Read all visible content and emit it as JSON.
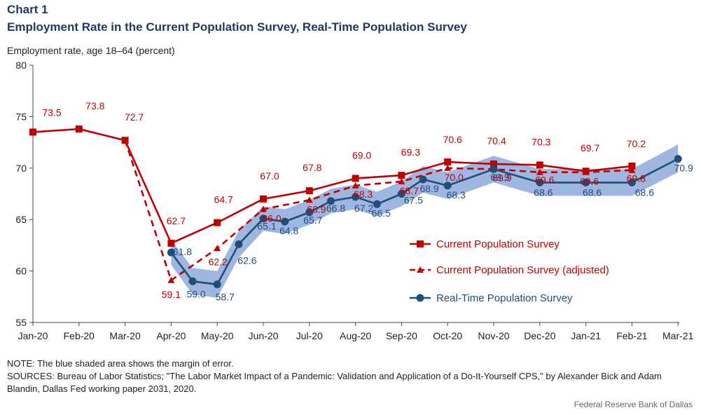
{
  "header": {
    "chart_label": "Chart 1",
    "title": "Employment Rate in the Current Population Survey, Real-Time Population Survey"
  },
  "footer": {
    "note": "NOTE: The blue shaded area shows the margin of error.",
    "sources": "SOURCES: Bureau of Labor Statistics; \"The Labor Market Impact of a Pandemic: Validation and Application of a Do-It-Yourself  CPS,\" by Alexander Bick and Adam Blandin, Dallas Fed working paper 2031, 2020.",
    "credit": "Federal Reserve Bank of Dallas"
  },
  "colors": {
    "cps": "#c00000",
    "rps": "#1f4e79",
    "band": "#8eaadb",
    "axis": "#444444"
  },
  "chart_data": {
    "type": "line",
    "title": "Employment Rate in the Current Population Survey, Real-Time Population Survey",
    "ylabel": "Employment rate, age 18–64 (percent)",
    "xlabel": "",
    "ylim": [
      55,
      80
    ],
    "yticks": [
      55,
      60,
      65,
      70,
      75,
      80
    ],
    "grid": false,
    "legend_position": "right",
    "x_ticks": [
      "Jan-20",
      "Feb-20",
      "Mar-20",
      "Apr-20",
      "May-20",
      "Jun-20",
      "Jul-20",
      "Aug-20",
      "Sep-20",
      "Oct-20",
      "Nov-20",
      "Dec-20",
      "Jan-21",
      "Feb-21",
      "Mar-21"
    ],
    "series": [
      {
        "name": "Current Population Survey",
        "style": "solid-square",
        "color": "#c00000",
        "points": [
          {
            "x": "2020-01",
            "y": 73.5,
            "label": "73.5"
          },
          {
            "x": "2020-02",
            "y": 73.8,
            "label": "73.8"
          },
          {
            "x": "2020-03",
            "y": 72.7,
            "label": "72.7"
          },
          {
            "x": "2020-04",
            "y": 62.7,
            "label": "62.7"
          },
          {
            "x": "2020-05",
            "y": 64.7,
            "label": "64.7"
          },
          {
            "x": "2020-06",
            "y": 67.0,
            "label": "67.0"
          },
          {
            "x": "2020-07",
            "y": 67.8,
            "label": "67.8"
          },
          {
            "x": "2020-08",
            "y": 69.0,
            "label": "69.0"
          },
          {
            "x": "2020-09",
            "y": 69.3,
            "label": "69.3"
          },
          {
            "x": "2020-10",
            "y": 70.6,
            "label": "70.6"
          },
          {
            "x": "2020-11",
            "y": 70.4,
            "label": "70.4"
          },
          {
            "x": "2020-12",
            "y": 70.3,
            "label": "70.3"
          },
          {
            "x": "2021-01",
            "y": 69.7,
            "label": "69.7"
          },
          {
            "x": "2021-02",
            "y": 70.2,
            "label": "70.2"
          }
        ]
      },
      {
        "name": "Current Population Survey (adjusted)",
        "style": "dashed-triangle",
        "color": "#c00000",
        "points": [
          {
            "x": "2020-03",
            "y": 72.7,
            "label": ""
          },
          {
            "x": "2020-04",
            "y": 59.1,
            "label": "59.1"
          },
          {
            "x": "2020-05",
            "y": 62.2,
            "label": "62.2"
          },
          {
            "x": "2020-06",
            "y": 66.0,
            "label": "66.0"
          },
          {
            "x": "2020-07",
            "y": 66.9,
            "label": "66.9"
          },
          {
            "x": "2020-08",
            "y": 68.3,
            "label": "68.3"
          },
          {
            "x": "2020-09",
            "y": 68.7,
            "label": "68.7"
          },
          {
            "x": "2020-10",
            "y": 70.0,
            "label": "70.0"
          },
          {
            "x": "2020-11",
            "y": 69.9,
            "label": "69.9"
          },
          {
            "x": "2020-12",
            "y": 69.6,
            "label": "69.6"
          },
          {
            "x": "2021-01",
            "y": 69.6,
            "label": "69.6"
          },
          {
            "x": "2021-02",
            "y": 69.8,
            "label": "69.8"
          }
        ]
      },
      {
        "name": "Real-Time Population Survey",
        "style": "solid-circle",
        "color": "#1f4e79",
        "points": [
          {
            "x": "2020-04",
            "y": 61.8,
            "label": "61.8"
          },
          {
            "x": "2020-04-15",
            "y": 59.0,
            "label": "59.0"
          },
          {
            "x": "2020-05",
            "y": 58.7,
            "label": "58.7"
          },
          {
            "x": "2020-05-15",
            "y": 62.6,
            "label": "62.6"
          },
          {
            "x": "2020-06",
            "y": 65.1,
            "label": "65.1"
          },
          {
            "x": "2020-06-15",
            "y": 64.8,
            "label": "64.8"
          },
          {
            "x": "2020-07",
            "y": 65.7,
            "label": "65.7"
          },
          {
            "x": "2020-07-15",
            "y": 66.8,
            "label": "66.8"
          },
          {
            "x": "2020-08",
            "y": 67.2,
            "label": "67.2"
          },
          {
            "x": "2020-08-15",
            "y": 66.5,
            "label": "66.5"
          },
          {
            "x": "2020-09",
            "y": 67.5,
            "label": "67.5"
          },
          {
            "x": "2020-09-15",
            "y": 68.9,
            "label": "68.9"
          },
          {
            "x": "2020-10",
            "y": 68.3,
            "label": "68.3"
          },
          {
            "x": "2020-11",
            "y": 69.9,
            "label": "69.9"
          },
          {
            "x": "2020-12",
            "y": 68.6,
            "label": "68.6"
          },
          {
            "x": "2021-01",
            "y": 68.6,
            "label": "68.6"
          },
          {
            "x": "2021-02",
            "y": 68.6,
            "label": "68.6"
          },
          {
            "x": "2021-03",
            "y": 70.9,
            "label": "70.9"
          }
        ]
      }
    ],
    "margin_of_error": {
      "name": "margin of error",
      "points": [
        {
          "x": "2020-04",
          "lo": 60.6,
          "hi": 63.0
        },
        {
          "x": "2020-04-15",
          "lo": 57.7,
          "hi": 60.3
        },
        {
          "x": "2020-05",
          "lo": 57.4,
          "hi": 60.0
        },
        {
          "x": "2020-05-15",
          "lo": 61.3,
          "hi": 63.9
        },
        {
          "x": "2020-06",
          "lo": 63.9,
          "hi": 66.3
        },
        {
          "x": "2020-06-15",
          "lo": 63.6,
          "hi": 66.0
        },
        {
          "x": "2020-07",
          "lo": 64.5,
          "hi": 66.9
        },
        {
          "x": "2020-07-15",
          "lo": 65.6,
          "hi": 68.0
        },
        {
          "x": "2020-08",
          "lo": 66.0,
          "hi": 68.4
        },
        {
          "x": "2020-08-15",
          "lo": 65.3,
          "hi": 67.7
        },
        {
          "x": "2020-09",
          "lo": 66.3,
          "hi": 68.7
        },
        {
          "x": "2020-09-15",
          "lo": 67.6,
          "hi": 70.2
        },
        {
          "x": "2020-10",
          "lo": 67.0,
          "hi": 69.6
        },
        {
          "x": "2020-11",
          "lo": 68.6,
          "hi": 71.2
        },
        {
          "x": "2020-12",
          "lo": 67.3,
          "hi": 69.9
        },
        {
          "x": "2021-01",
          "lo": 67.3,
          "hi": 69.9
        },
        {
          "x": "2021-02",
          "lo": 67.3,
          "hi": 69.9
        },
        {
          "x": "2021-03",
          "lo": 69.6,
          "hi": 72.3
        }
      ]
    }
  }
}
